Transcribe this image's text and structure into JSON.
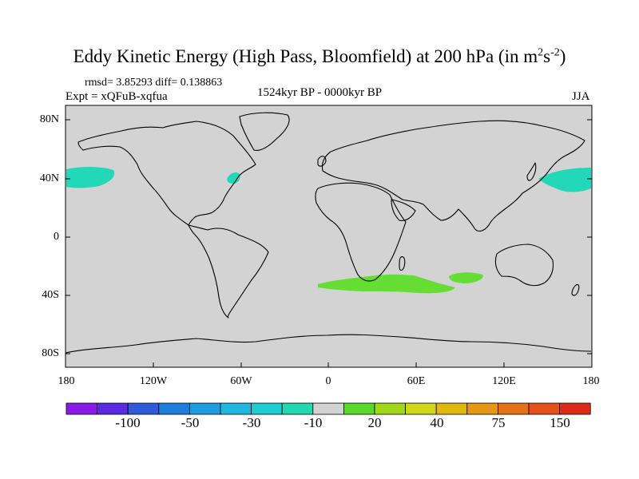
{
  "title": {
    "main": "Eddy Kinetic Energy (High Pass, Bloomfield) at 200 hPa (in m",
    "sup1": "2",
    "mid": "s",
    "sup2": "-2",
    "end": ")"
  },
  "stats": "rmsd= 3.85293 diff= 0.138863",
  "experiment": "Expt = xQFuB-xqfua",
  "period": "1524kyr BP - 0000kyr BP",
  "season": "JJA",
  "map": {
    "lat_ticks": [
      "80N",
      "40N",
      "0",
      "40S",
      "80S"
    ],
    "lon_ticks": [
      "180",
      "120W",
      "60W",
      "0",
      "60E",
      "120E",
      "180"
    ],
    "ocean_color": "#d3d3d3"
  },
  "colorbar": {
    "colors": [
      "#8a1be6",
      "#5a2be0",
      "#2f5ad8",
      "#1c7fdc",
      "#1d9de0",
      "#21b8e0",
      "#1ccdd2",
      "#22d8b0",
      "#d3d3d3",
      "#5cd82c",
      "#a2d81a",
      "#cfd81a",
      "#e0b810",
      "#e69814",
      "#e67016",
      "#e6501a",
      "#e02a18"
    ],
    "labels": [
      "-100",
      "-50",
      "-30",
      "-10",
      "20",
      "40",
      "75",
      "150"
    ]
  },
  "anomalies": {
    "negative_color": "#22d8b8",
    "positive_color": "#66dd33"
  }
}
